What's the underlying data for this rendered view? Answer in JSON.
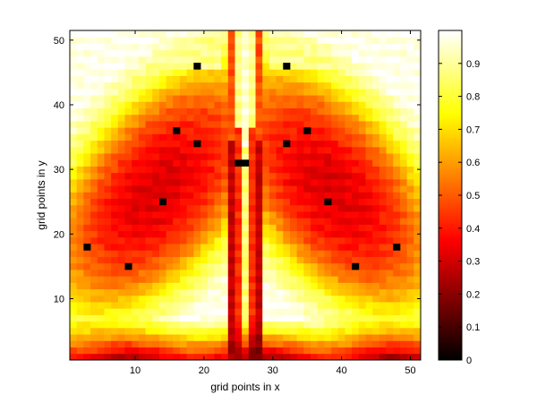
{
  "chart_data": {
    "type": "heatmap",
    "title": "",
    "xlabel": "grid points in x",
    "ylabel": "grid points in y",
    "xlim": [
      0.5,
      51.5
    ],
    "ylim": [
      0.5,
      51.5
    ],
    "xticks": [
      10,
      20,
      30,
      40,
      50
    ],
    "yticks": [
      10,
      20,
      30,
      40,
      50
    ],
    "grid_size": [
      51,
      51
    ],
    "colormap": "hot",
    "clim": [
      0,
      1
    ],
    "colorbar_ticks": [
      0,
      0.1,
      0.2,
      0.3,
      0.4,
      0.5,
      0.6,
      0.7,
      0.8,
      0.9
    ],
    "description_points": [
      {
        "x": 14,
        "y": 25
      },
      {
        "x": 38,
        "y": 25
      },
      {
        "x": 9,
        "y": 15
      },
      {
        "x": 42,
        "y": 15
      },
      {
        "x": 16,
        "y": 36
      },
      {
        "x": 35,
        "y": 36
      },
      {
        "x": 19,
        "y": 34
      },
      {
        "x": 32,
        "y": 34
      },
      {
        "x": 19,
        "y": 46
      },
      {
        "x": 32,
        "y": 46
      },
      {
        "x": 3,
        "y": 18
      },
      {
        "x": 48,
        "y": 18
      },
      {
        "x": 25,
        "y": 31
      },
      {
        "x": 26,
        "y": 31
      }
    ]
  }
}
